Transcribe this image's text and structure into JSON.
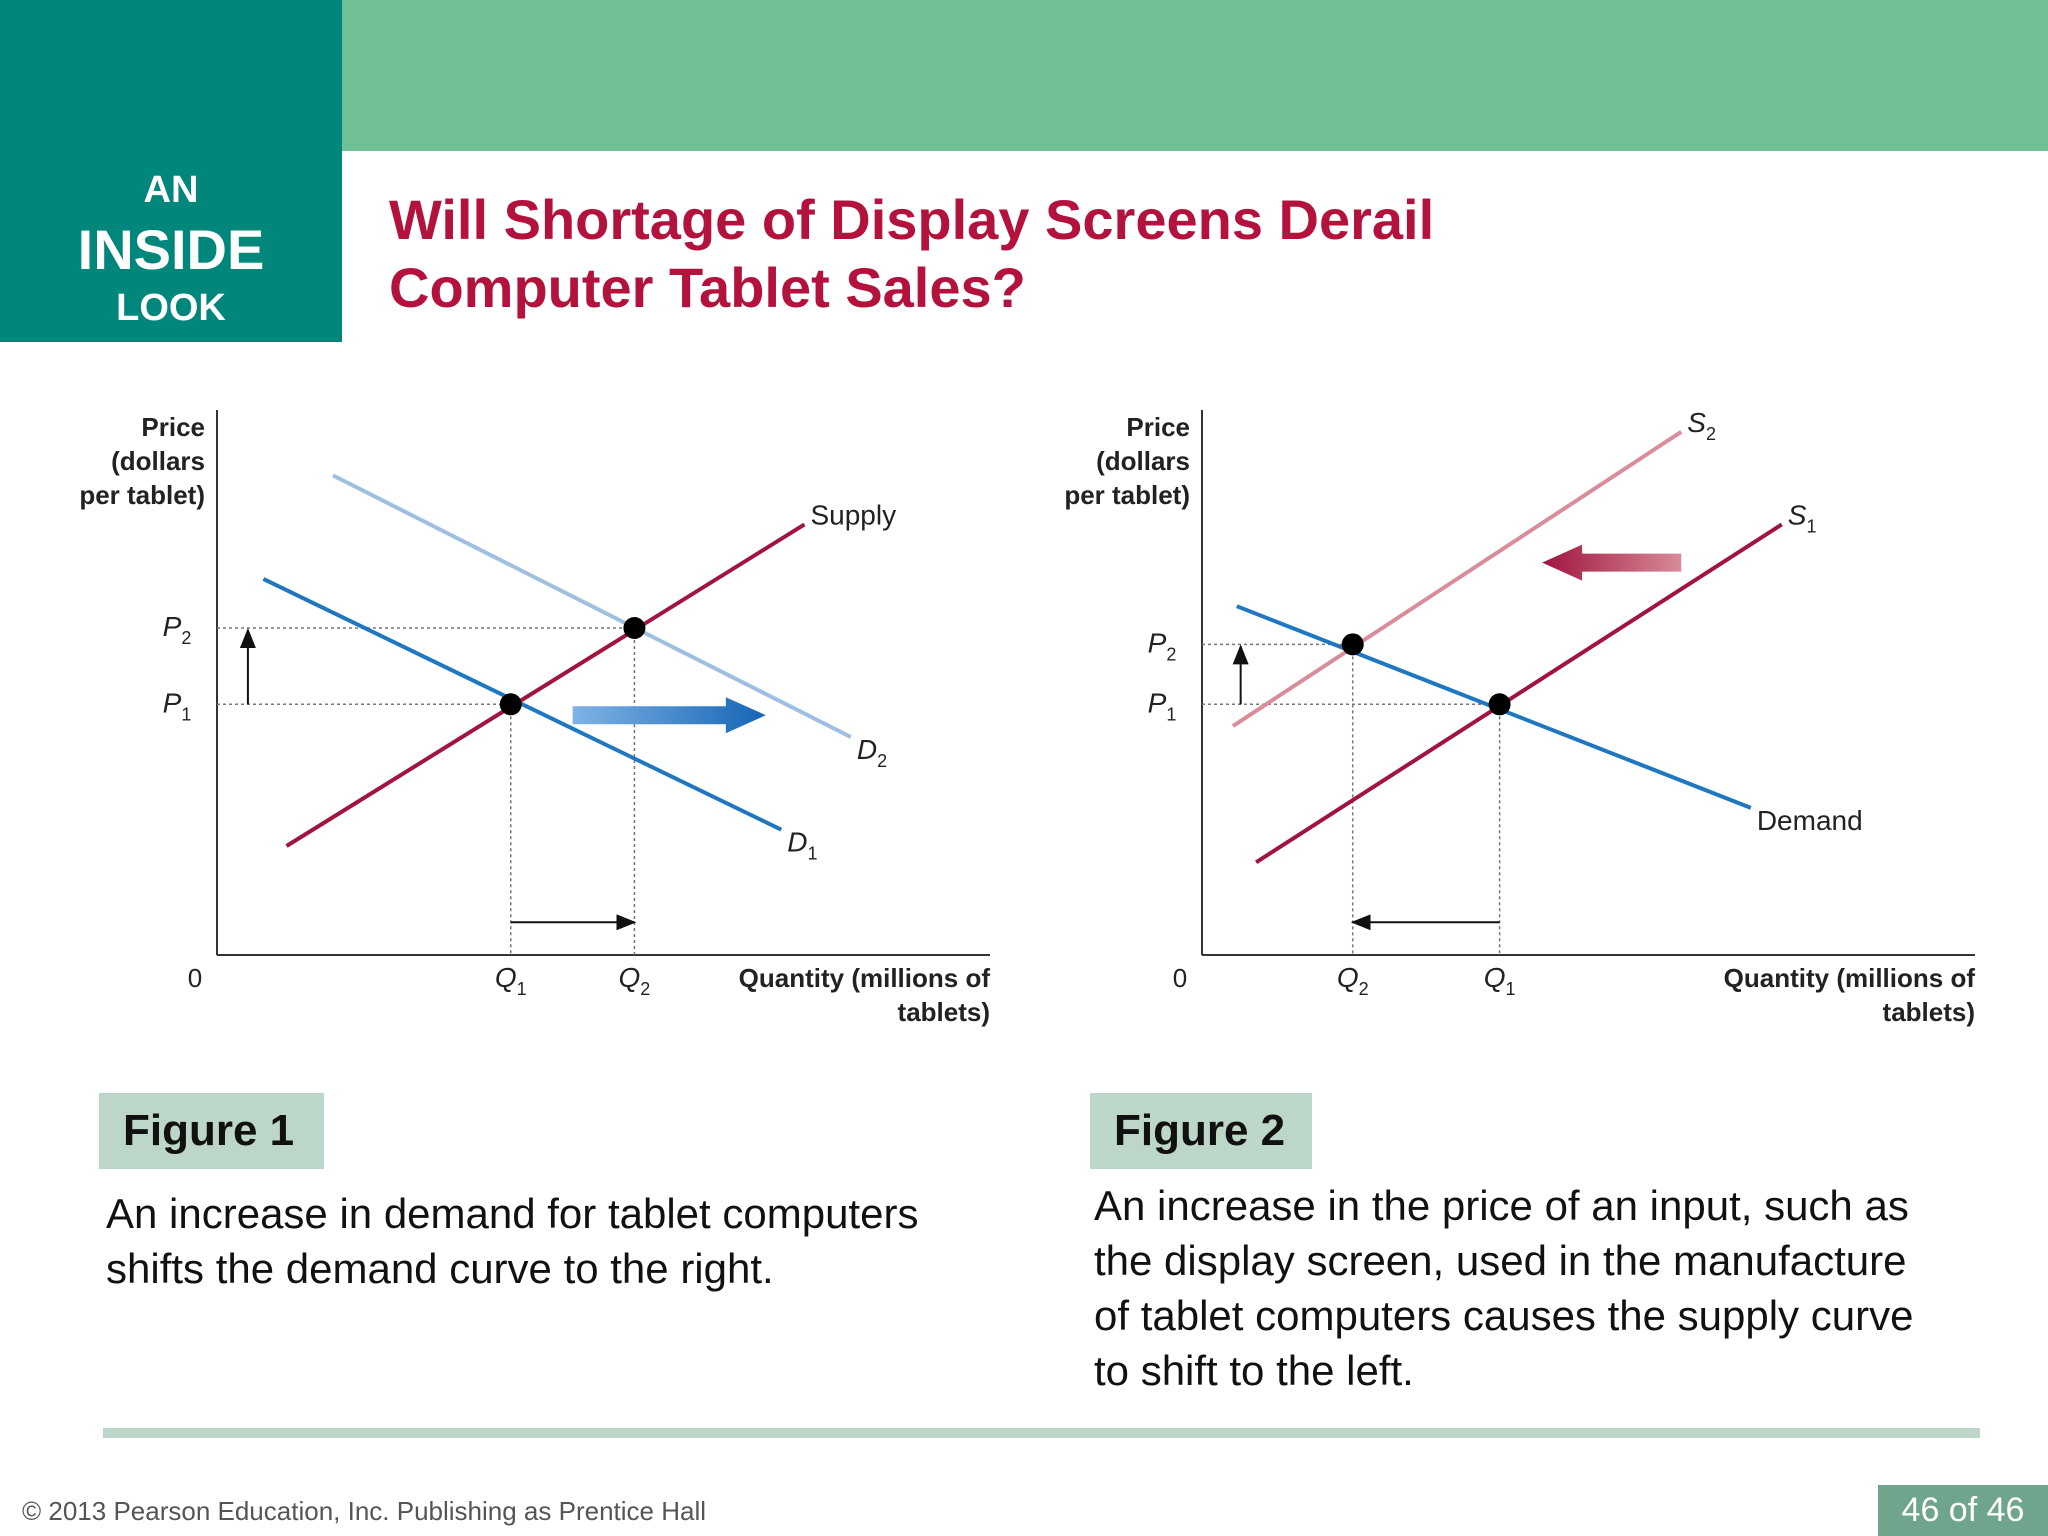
{
  "badge": {
    "line1": "AN",
    "line2": "INSIDE",
    "line3": "LOOK"
  },
  "title": {
    "line1": "Will Shortage of Display Screens Derail",
    "line2": "Computer Tablet Sales?"
  },
  "colors": {
    "band": "#70c096",
    "badge": "#00867a",
    "title": "#b3123d",
    "supply": "#a0143e",
    "supply_light": "#d98d9a",
    "demand": "#1f77c1",
    "demand_light": "#9ebfe0",
    "label_bg": "#bcd6c8",
    "page_num_bg": "#6fa58d"
  },
  "figures": [
    {
      "label": "Figure 1",
      "caption": [
        "An increase in demand for tablet computers",
        "shifts the demand curve to the right."
      ]
    },
    {
      "label": "Figure 2",
      "caption": [
        "An increase in the price of an input, such as",
        "the display screen, used in the manufacture",
        "of tablet computers causes the supply curve",
        "to shift to the left."
      ]
    }
  ],
  "chart_data": [
    {
      "type": "line",
      "title": "",
      "ylabel": [
        "Price",
        "(dollars",
        "per tablet)"
      ],
      "xlabel": [
        "Quantity (millions of",
        "tablets)"
      ],
      "origin_label": "0",
      "xlim": [
        0,
        10
      ],
      "ylim": [
        0,
        10
      ],
      "x_ticks": [
        {
          "name": "Q",
          "sub": "1",
          "x": 3.8
        },
        {
          "name": "Q",
          "sub": "2",
          "x": 5.4
        }
      ],
      "y_ticks": [
        {
          "name": "P",
          "sub": "1",
          "y": 4.6
        },
        {
          "name": "P",
          "sub": "2",
          "y": 6.0
        }
      ],
      "series": [
        {
          "name": "Supply",
          "sub": "",
          "points": [
            [
              0.9,
              2.0
            ],
            [
              7.6,
              7.9
            ]
          ],
          "color": "#a0143e"
        },
        {
          "name": "D",
          "sub": "2",
          "points": [
            [
              1.5,
              8.8
            ],
            [
              8.2,
              4.0
            ]
          ],
          "color": "#9ebfe0"
        },
        {
          "name": "D",
          "sub": "1",
          "points": [
            [
              0.6,
              6.9
            ],
            [
              7.3,
              2.3
            ]
          ],
          "color": "#1f77c1"
        }
      ],
      "equilibria": [
        [
          3.8,
          4.6
        ],
        [
          5.4,
          6.0
        ]
      ],
      "shift_arrow": {
        "from": [
          4.6,
          4.4
        ],
        "to": [
          7.1,
          4.4
        ],
        "color": "#1f77c1"
      },
      "price_arrow": {
        "x": 0.4,
        "from": 4.6,
        "to": 6.0
      },
      "quantity_arrow": {
        "y": 0.6,
        "from": 3.8,
        "to": 5.4
      }
    },
    {
      "type": "line",
      "title": "",
      "ylabel": [
        "Price",
        "(dollars",
        "per tablet)"
      ],
      "xlabel": [
        "Quantity (millions of",
        "tablets)"
      ],
      "origin_label": "0",
      "xlim": [
        0,
        10
      ],
      "ylim": [
        0,
        10
      ],
      "x_ticks": [
        {
          "name": "Q",
          "sub": "2",
          "x": 1.95
        },
        {
          "name": "Q",
          "sub": "1",
          "x": 3.85
        }
      ],
      "y_ticks": [
        {
          "name": "P",
          "sub": "1",
          "y": 4.6
        },
        {
          "name": "P",
          "sub": "2",
          "y": 5.7
        }
      ],
      "series": [
        {
          "name": "S",
          "sub": "2",
          "points": [
            [
              0.4,
              4.2
            ],
            [
              6.2,
              9.6
            ]
          ],
          "color": "#d98d9a"
        },
        {
          "name": "S",
          "sub": "1",
          "points": [
            [
              0.7,
              1.7
            ],
            [
              7.5,
              7.9
            ]
          ],
          "color": "#a0143e"
        },
        {
          "name": "Demand",
          "sub": "",
          "points": [
            [
              0.45,
              6.4
            ],
            [
              7.1,
              2.7
            ]
          ],
          "color": "#1f77c1"
        }
      ],
      "equilibria": [
        [
          1.95,
          5.7
        ],
        [
          3.85,
          4.6
        ]
      ],
      "shift_arrow": {
        "from": [
          6.2,
          7.2
        ],
        "to": [
          4.4,
          7.2
        ],
        "color": "#a0143e"
      },
      "price_arrow": {
        "x": 0.5,
        "from": 4.6,
        "to": 5.7
      },
      "quantity_arrow": {
        "y": 0.6,
        "from": 3.85,
        "to": 1.95
      }
    }
  ],
  "footer": {
    "copyright": "© 2013 Pearson Education, Inc. Publishing as Prentice Hall",
    "page": "46 of 46"
  }
}
